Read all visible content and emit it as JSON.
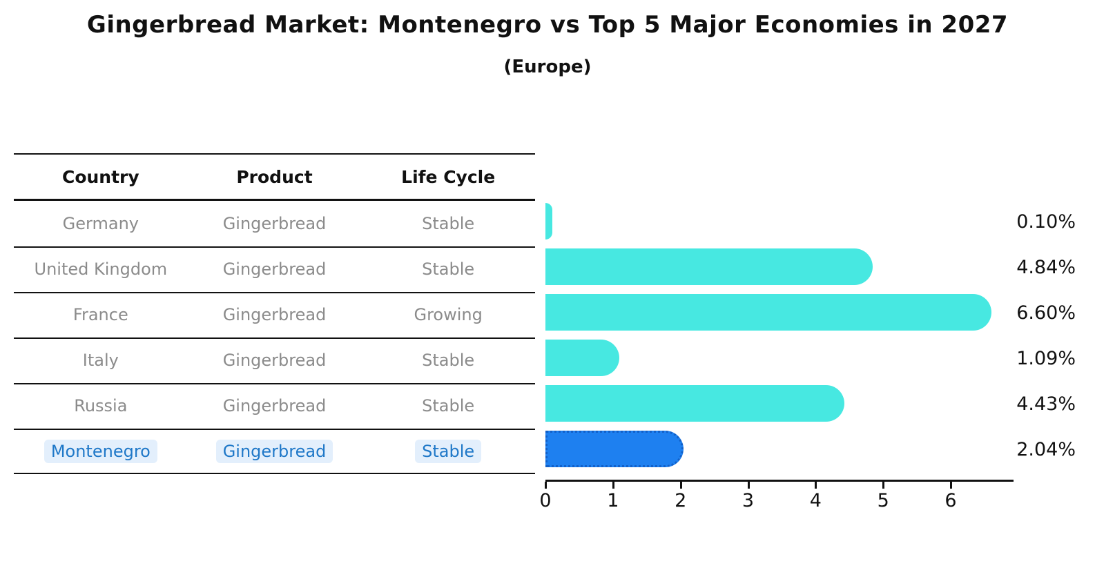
{
  "title": "Gingerbread Market: Montenegro vs Top 5 Major Economies in 2027",
  "subtitle": "(Europe)",
  "table": {
    "headers": [
      "Country",
      "Product",
      "Life Cycle"
    ],
    "rows": [
      {
        "country": "Germany",
        "product": "Gingerbread",
        "life_cycle": "Stable",
        "highlight": false
      },
      {
        "country": "United Kingdom",
        "product": "Gingerbread",
        "life_cycle": "Stable",
        "highlight": false
      },
      {
        "country": "France",
        "product": "Gingerbread",
        "life_cycle": "Growing",
        "highlight": false
      },
      {
        "country": "Italy",
        "product": "Gingerbread",
        "life_cycle": "Stable",
        "highlight": false
      },
      {
        "country": "Russia",
        "product": "Gingerbread",
        "life_cycle": "Stable",
        "highlight": false
      },
      {
        "country": "Montenegro",
        "product": "Gingerbread",
        "life_cycle": "Stable",
        "highlight": true
      }
    ]
  },
  "chart_data": {
    "type": "bar",
    "orientation": "horizontal",
    "categories": [
      "Germany",
      "United Kingdom",
      "France",
      "Italy",
      "Russia",
      "Montenegro"
    ],
    "values": [
      0.1,
      4.84,
      6.6,
      1.09,
      4.43,
      2.04
    ],
    "value_labels": [
      "0.10%",
      "4.84%",
      "6.60%",
      "1.09%",
      "4.43%",
      "2.04%"
    ],
    "title": "Gingerbread Market: Montenegro vs Top 5 Major Economies in 2027",
    "subtitle": "(Europe)",
    "xlabel": "",
    "ylabel": "",
    "xticks": [
      0,
      1,
      2,
      3,
      4,
      5,
      6
    ],
    "xlim": [
      0,
      6.93
    ],
    "grid": false,
    "legend": "none",
    "highlight_index": 5,
    "bar_color": "#47e8e1",
    "highlight_bar_color": "#1e80f0",
    "highlight_text_color": "#1f78c8",
    "row_text_color": "#8b8b8b",
    "axis_color": "#111111"
  }
}
